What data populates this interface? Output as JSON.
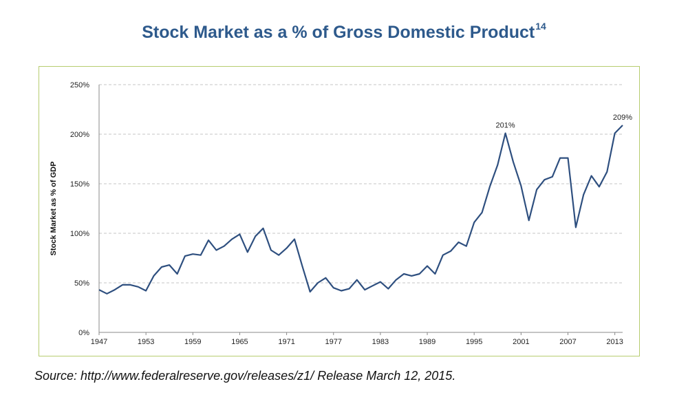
{
  "header": {
    "title": "Stock Market as a % of Gross Domestic Product",
    "superscript": "14"
  },
  "source": "Source: http://www.federalreserve.gov/releases/z1/ Release March 12, 2015.",
  "chart_data": {
    "type": "line",
    "title": "",
    "xlabel": "",
    "ylabel": "Stock Market as % of GDP",
    "ylim": [
      0,
      250
    ],
    "xlim": [
      1947,
      2014
    ],
    "x_ticks": [
      "1947",
      "1953",
      "1959",
      "1965",
      "1971",
      "1977",
      "1983",
      "1989",
      "1995",
      "2001",
      "2007",
      "2013"
    ],
    "y_ticks": [
      "0%",
      "50%",
      "100%",
      "150%",
      "200%",
      "250%"
    ],
    "grid": "horizontal dashed",
    "line_color": "#2e4f7f",
    "series": [
      {
        "x": [
          1947,
          1948,
          1949,
          1950,
          1951,
          1952,
          1953,
          1954,
          1955,
          1956,
          1957,
          1958,
          1959,
          1960,
          1961,
          1962,
          1963,
          1964,
          1965,
          1966,
          1967,
          1968,
          1969,
          1970,
          1971,
          1972,
          1973,
          1974,
          1975,
          1976,
          1977,
          1978,
          1979,
          1980,
          1981,
          1982,
          1983,
          1984,
          1985,
          1986,
          1987,
          1988,
          1989,
          1990,
          1991,
          1992,
          1993,
          1994,
          1995,
          1996,
          1997,
          1998,
          1999,
          2000,
          2001,
          2002,
          2003,
          2004,
          2005,
          2006,
          2007,
          2008,
          2009,
          2010,
          2011,
          2012,
          2013,
          2014
        ],
        "values": [
          43,
          39,
          43,
          48,
          48,
          46,
          42,
          57,
          66,
          68,
          59,
          77,
          79,
          78,
          93,
          83,
          87,
          94,
          99,
          81,
          97,
          105,
          83,
          78,
          85,
          94,
          67,
          41,
          50,
          55,
          45,
          42,
          44,
          53,
          43,
          47,
          51,
          44,
          53,
          59,
          57,
          59,
          67,
          59,
          78,
          82,
          91,
          87,
          111,
          121,
          147,
          169,
          201,
          172,
          148,
          113,
          144,
          154,
          157,
          176,
          176,
          106,
          139,
          158,
          147,
          162,
          201,
          209
        ]
      }
    ],
    "annotations": [
      {
        "label": "201%",
        "x": 1999,
        "y": 201
      },
      {
        "label": "209%",
        "x": 2014,
        "y": 209
      }
    ]
  }
}
